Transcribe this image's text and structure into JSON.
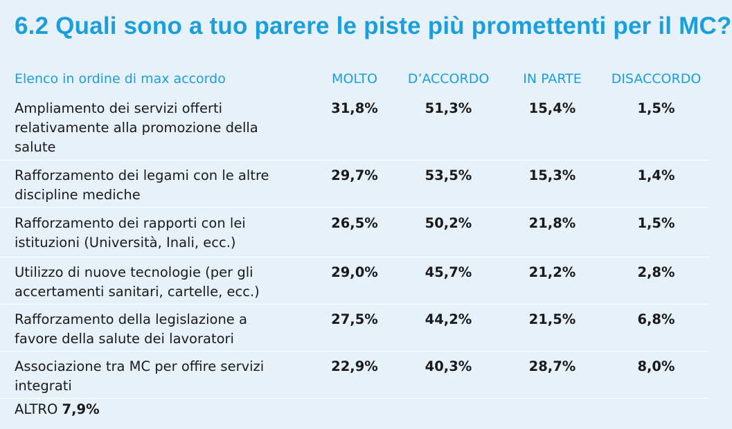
{
  "title": "6.2 Quali sono a tuo parere le piste più promettenti per il MC?",
  "header": {
    "label": "Elenco in ordine di max accordo",
    "columns": [
      "MOLTO",
      "D’ACCORDO",
      "IN PARTE",
      "DISACCORDO"
    ]
  },
  "rows": [
    {
      "label": "Ampliamento dei servizi offerti relativamente alla promozione della salute",
      "values": [
        "31,8%",
        "51,3%",
        "15,4%",
        "1,5%"
      ]
    },
    {
      "label": "Rafforzamento dei legami con le altre discipline mediche",
      "values": [
        "29,7%",
        "53,5%",
        "15,3%",
        "1,4%"
      ]
    },
    {
      "label": "Rafforzamento dei rapporti con lei istituzioni (Università, Inali, ecc.)",
      "values": [
        "26,5%",
        "50,2%",
        "21,8%",
        "1,5%"
      ]
    },
    {
      "label": "Utilizzo di nuove tecnologie (per gli accertamenti sanitari, cartelle, ecc.)",
      "values": [
        "29,0%",
        "45,7%",
        "21,2%",
        "2,8%"
      ]
    },
    {
      "label": "Rafforzamento della legislazione a favore della salute dei lavoratori",
      "values": [
        "27,5%",
        "44,2%",
        "21,5%",
        "6,8%"
      ]
    },
    {
      "label": "Associazione tra MC per offire servizi integrati",
      "values": [
        "22,9%",
        "40,3%",
        "28,7%",
        "8,0%"
      ]
    }
  ],
  "other": {
    "label": "ALTRO",
    "value": "7,9%"
  }
}
